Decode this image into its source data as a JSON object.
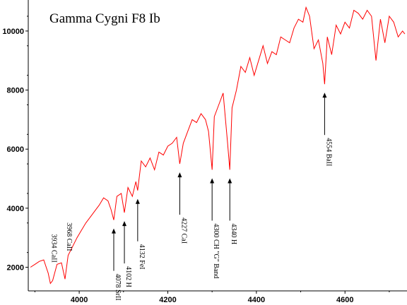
{
  "chart_data": {
    "type": "line",
    "title": "Gamma Cygni F8 Ib",
    "xlabel": "",
    "ylabel": "",
    "xlim": [
      3885,
      4740
    ],
    "ylim": [
      1200,
      11050
    ],
    "grid": false,
    "legend": "none",
    "line_color": "#ff0000",
    "x_ticks": [
      {
        "value": 4000,
        "label": "4000"
      },
      {
        "value": 4200,
        "label": "4200"
      },
      {
        "value": 4400,
        "label": "4400"
      },
      {
        "value": 4600,
        "label": "4600"
      }
    ],
    "y_ticks": [
      {
        "value": 2000,
        "label": "2000"
      },
      {
        "value": 4000,
        "label": "4000"
      },
      {
        "value": 6000,
        "label": "6000"
      },
      {
        "value": 8000,
        "label": "8000"
      },
      {
        "value": 10000,
        "label": "10000"
      }
    ],
    "series": [
      {
        "x": [
          3890,
          3900,
          3910,
          3920,
          3930,
          3935,
          3940,
          3950,
          3960,
          3968,
          3975,
          3985,
          3995,
          4005,
          4015,
          4025,
          4035,
          4045,
          4055,
          4065,
          4072,
          4078,
          4085,
          4095,
          4102,
          4110,
          4120,
          4128,
          4132,
          4140,
          4150,
          4160,
          4170,
          4180,
          4190,
          4200,
          4210,
          4220,
          4227,
          4235,
          4245,
          4255,
          4265,
          4275,
          4285,
          4292,
          4300,
          4305,
          4315,
          4325,
          4335,
          4340,
          4345,
          4355,
          4365,
          4375,
          4385,
          4395,
          4405,
          4415,
          4425,
          4435,
          4445,
          4455,
          4465,
          4475,
          4485,
          4495,
          4505,
          4512,
          4520,
          4530,
          4540,
          4550,
          4554,
          4560,
          4570,
          4580,
          4590,
          4600,
          4610,
          4620,
          4630,
          4640,
          4650,
          4660,
          4670,
          4680,
          4690,
          4700,
          4710,
          4720,
          4730,
          4735
        ],
        "y": [
          2000,
          2100,
          2200,
          2250,
          1800,
          1450,
          1550,
          2100,
          2150,
          1600,
          2400,
          2700,
          3000,
          3250,
          3500,
          3700,
          3900,
          4100,
          4350,
          4250,
          3950,
          3600,
          4400,
          4500,
          3850,
          4700,
          4400,
          4900,
          4600,
          5600,
          5400,
          5700,
          5300,
          5900,
          5800,
          6100,
          6200,
          6400,
          5500,
          6200,
          6600,
          7000,
          6900,
          7200,
          7000,
          6600,
          5300,
          7100,
          7500,
          7900,
          6200,
          5300,
          7400,
          8000,
          8800,
          8600,
          9100,
          8500,
          9000,
          9500,
          8900,
          9300,
          9200,
          9800,
          9700,
          9600,
          10100,
          10400,
          10300,
          10800,
          10500,
          9400,
          9700,
          8900,
          8200,
          9800,
          9200,
          10200,
          9900,
          10300,
          10100,
          10700,
          10600,
          10400,
          10700,
          10500,
          9000,
          10400,
          9600,
          10500,
          10300,
          9800,
          10000,
          9900
        ]
      }
    ],
    "annotations": [
      {
        "label": "3934 CaII",
        "x": 3934
      },
      {
        "label": "3968 CaII",
        "x": 3968
      },
      {
        "label": "4078 SrII",
        "x": 4078,
        "arrow": true
      },
      {
        "label": "4102 H",
        "x": 4102,
        "arrow": true
      },
      {
        "label": "4132 FeI",
        "x": 4132,
        "arrow": true
      },
      {
        "label": "4227 CaI",
        "x": 4227,
        "arrow": true
      },
      {
        "label": "4300 CH \"G\" Band",
        "x": 4300,
        "arrow": true
      },
      {
        "label": "4340 H",
        "x": 4340,
        "arrow": true
      },
      {
        "label": "4554 BaII",
        "x": 4554,
        "arrow": true
      }
    ]
  }
}
